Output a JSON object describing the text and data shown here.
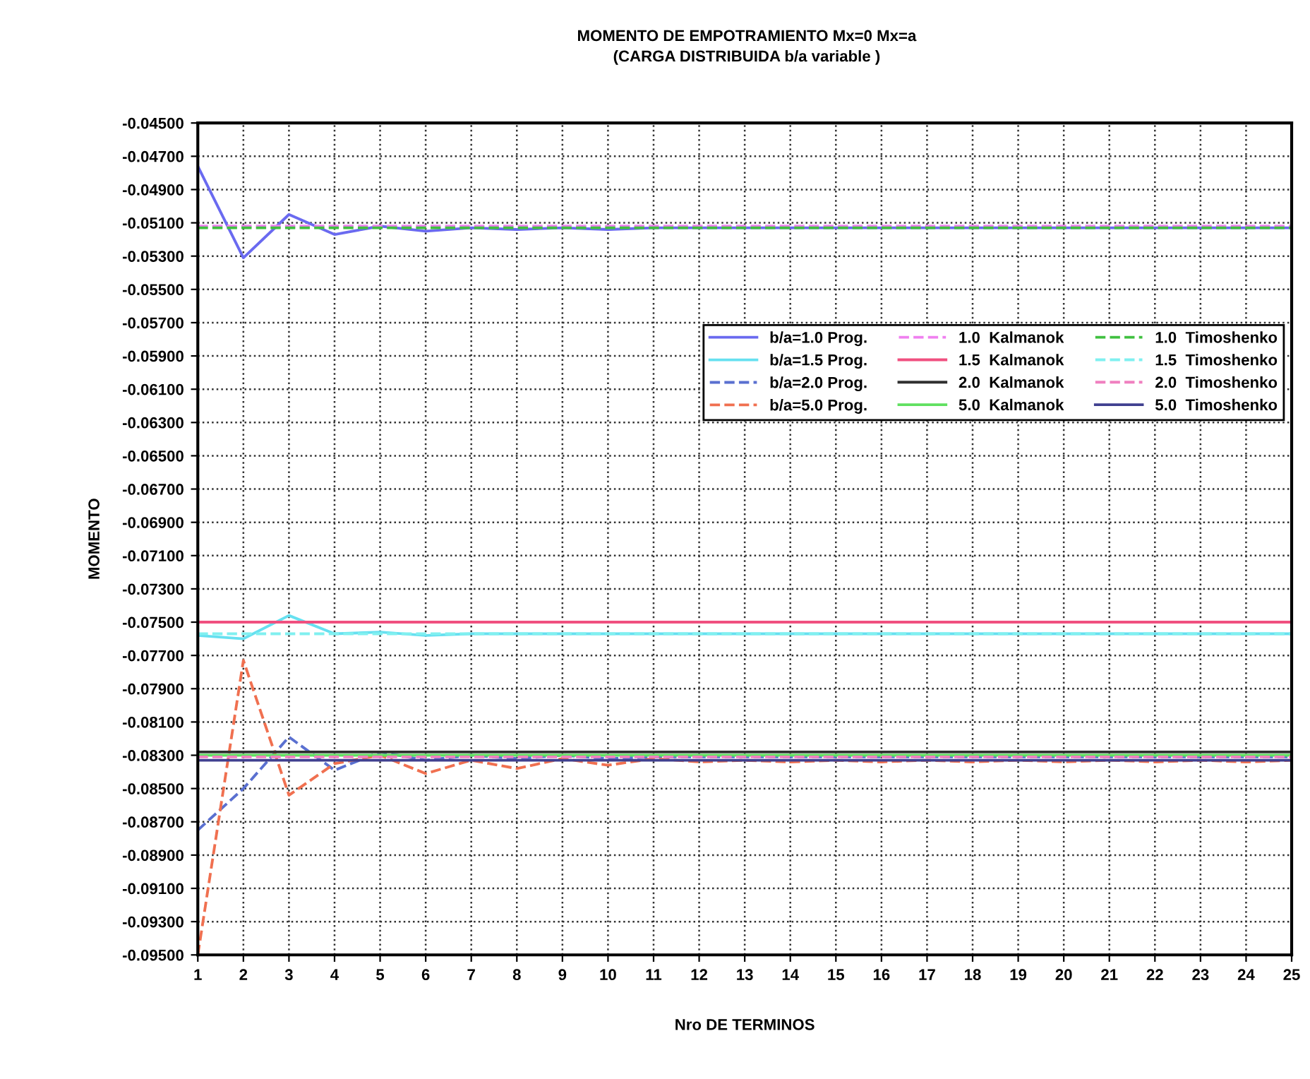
{
  "chart_data": {
    "type": "line",
    "title": "MOMENTO DE EMPOTRAMIENTO Mx=0 Mx=a",
    "subtitle": "(CARGA DISTRIBUIDA b/a variable )",
    "xlabel": "Nro DE TERMINOS",
    "ylabel": "MOMENTO",
    "x": [
      1,
      2,
      3,
      4,
      5,
      6,
      7,
      8,
      9,
      10,
      11,
      12,
      13,
      14,
      15,
      16,
      17,
      18,
      19,
      20,
      21,
      22,
      23,
      24,
      25
    ],
    "xlim": [
      1,
      25
    ],
    "xticks": [
      1,
      2,
      3,
      4,
      5,
      6,
      7,
      8,
      9,
      10,
      11,
      12,
      13,
      14,
      15,
      16,
      17,
      18,
      19,
      20,
      21,
      22,
      23,
      24,
      25
    ],
    "ylim": [
      -0.095,
      -0.045
    ],
    "yticks": [
      {
        "value": -0.045,
        "label": "-0.04500"
      },
      {
        "value": -0.047,
        "label": "-0.04700"
      },
      {
        "value": -0.049,
        "label": "-0.04900"
      },
      {
        "value": -0.051,
        "label": "-0.05100"
      },
      {
        "value": -0.053,
        "label": "-0.05300"
      },
      {
        "value": -0.055,
        "label": "-0.05500"
      },
      {
        "value": -0.057,
        "label": "-0.05700"
      },
      {
        "value": -0.059,
        "label": "-0.05900"
      },
      {
        "value": -0.061,
        "label": "-0.06100"
      },
      {
        "value": -0.063,
        "label": "-0.06300"
      },
      {
        "value": -0.065,
        "label": "-0.06500"
      },
      {
        "value": -0.067,
        "label": "-0.06700"
      },
      {
        "value": -0.069,
        "label": "-0.06900"
      },
      {
        "value": -0.071,
        "label": "-0.07100"
      },
      {
        "value": -0.073,
        "label": "-0.07300"
      },
      {
        "value": -0.075,
        "label": "-0.07500"
      },
      {
        "value": -0.077,
        "label": "-0.07700"
      },
      {
        "value": -0.079,
        "label": "-0.07900"
      },
      {
        "value": -0.081,
        "label": "-0.08100"
      },
      {
        "value": -0.083,
        "label": "-0.08300"
      },
      {
        "value": -0.085,
        "label": "-0.08500"
      },
      {
        "value": -0.087,
        "label": "-0.08700"
      },
      {
        "value": -0.089,
        "label": "-0.08900"
      },
      {
        "value": -0.091,
        "label": "-0.09100"
      },
      {
        "value": -0.093,
        "label": "-0.09300"
      },
      {
        "value": -0.095,
        "label": "-0.09500"
      }
    ],
    "grid": true,
    "legend": "right",
    "series": [
      {
        "name": "b/a=1.0 Prog.",
        "color": "#6a6af0",
        "line_style": "solid",
        "values": [
          -0.0476,
          -0.0531,
          -0.0505,
          -0.0517,
          -0.0512,
          -0.0515,
          -0.0513,
          -0.0514,
          -0.0513,
          -0.0514,
          -0.0513,
          -0.0513,
          -0.0513,
          -0.0513,
          -0.0513,
          -0.0513,
          -0.0513,
          -0.0513,
          -0.0513,
          -0.0513,
          -0.0513,
          -0.0513,
          -0.0513,
          -0.0513,
          -0.0513
        ]
      },
      {
        "name": "b/a=1.5 Prog.",
        "color": "#66e0f0",
        "line_style": "solid",
        "values": [
          -0.0758,
          -0.076,
          -0.0746,
          -0.0757,
          -0.0756,
          -0.0758,
          -0.0757,
          -0.0757,
          -0.0757,
          -0.0757,
          -0.0757,
          -0.0757,
          -0.0757,
          -0.0757,
          -0.0757,
          -0.0757,
          -0.0757,
          -0.0757,
          -0.0757,
          -0.0757,
          -0.0757,
          -0.0757,
          -0.0757,
          -0.0757,
          -0.0757
        ]
      },
      {
        "name": "b/a=2.0 Prog.",
        "color": "#5a70d0",
        "line_style": "dashed",
        "values": [
          -0.0875,
          -0.085,
          -0.0819,
          -0.0839,
          -0.0828,
          -0.0833,
          -0.083,
          -0.0832,
          -0.083,
          -0.0832,
          -0.0831,
          -0.0831,
          -0.0831,
          -0.0831,
          -0.0831,
          -0.0831,
          -0.0831,
          -0.0831,
          -0.0831,
          -0.0831,
          -0.0831,
          -0.0831,
          -0.0831,
          -0.0831,
          -0.0831
        ]
      },
      {
        "name": "b/a=5.0 Prog.",
        "color": "#f07050",
        "line_style": "dashed",
        "values": [
          -0.095,
          -0.0773,
          -0.0854,
          -0.0835,
          -0.083,
          -0.0841,
          -0.0833,
          -0.0838,
          -0.0832,
          -0.0836,
          -0.0832,
          -0.0834,
          -0.0833,
          -0.0834,
          -0.0833,
          -0.0834,
          -0.0833,
          -0.0834,
          -0.0833,
          -0.0834,
          -0.0833,
          -0.0834,
          -0.0833,
          -0.0834,
          -0.0833
        ]
      },
      {
        "name": "1.0  Kalmanok",
        "color": "#f080f0",
        "line_style": "dashed",
        "values": [
          -0.0512,
          -0.0512,
          -0.0512,
          -0.0512,
          -0.0512,
          -0.0512,
          -0.0512,
          -0.0512,
          -0.0512,
          -0.0512,
          -0.0512,
          -0.0512,
          -0.0512,
          -0.0512,
          -0.0512,
          -0.0512,
          -0.0512,
          -0.0512,
          -0.0512,
          -0.0512,
          -0.0512,
          -0.0512,
          -0.0512,
          -0.0512,
          -0.0512
        ]
      },
      {
        "name": "1.5  Kalmanok",
        "color": "#f05080",
        "line_style": "solid",
        "values": [
          -0.075,
          -0.075,
          -0.075,
          -0.075,
          -0.075,
          -0.075,
          -0.075,
          -0.075,
          -0.075,
          -0.075,
          -0.075,
          -0.075,
          -0.075,
          -0.075,
          -0.075,
          -0.075,
          -0.075,
          -0.075,
          -0.075,
          -0.075,
          -0.075,
          -0.075,
          -0.075,
          -0.075,
          -0.075
        ]
      },
      {
        "name": "2.0  Kalmanok",
        "color": "#303030",
        "line_style": "solid",
        "values": [
          -0.0828,
          -0.0828,
          -0.0828,
          -0.0828,
          -0.0828,
          -0.0828,
          -0.0828,
          -0.0828,
          -0.0828,
          -0.0828,
          -0.0828,
          -0.0828,
          -0.0828,
          -0.0828,
          -0.0828,
          -0.0828,
          -0.0828,
          -0.0828,
          -0.0828,
          -0.0828,
          -0.0828,
          -0.0828,
          -0.0828,
          -0.0828,
          -0.0828
        ]
      },
      {
        "name": "5.0  Kalmanok",
        "color": "#60e060",
        "line_style": "solid",
        "values": [
          -0.083,
          -0.083,
          -0.083,
          -0.083,
          -0.083,
          -0.083,
          -0.083,
          -0.083,
          -0.083,
          -0.083,
          -0.083,
          -0.083,
          -0.083,
          -0.083,
          -0.083,
          -0.083,
          -0.083,
          -0.083,
          -0.083,
          -0.083,
          -0.083,
          -0.083,
          -0.083,
          -0.083,
          -0.083
        ]
      },
      {
        "name": "1.0  Timoshenko",
        "color": "#40c040",
        "line_style": "dashed",
        "values": [
          -0.0513,
          -0.0513,
          -0.0513,
          -0.0513,
          -0.0513,
          -0.0513,
          -0.0513,
          -0.0513,
          -0.0513,
          -0.0513,
          -0.0513,
          -0.0513,
          -0.0513,
          -0.0513,
          -0.0513,
          -0.0513,
          -0.0513,
          -0.0513,
          -0.0513,
          -0.0513,
          -0.0513,
          -0.0513,
          -0.0513,
          -0.0513,
          -0.0513
        ]
      },
      {
        "name": "1.5  Timoshenko",
        "color": "#80f0f0",
        "line_style": "dashed",
        "values": [
          -0.0757,
          -0.0757,
          -0.0757,
          -0.0757,
          -0.0757,
          -0.0757,
          -0.0757,
          -0.0757,
          -0.0757,
          -0.0757,
          -0.0757,
          -0.0757,
          -0.0757,
          -0.0757,
          -0.0757,
          -0.0757,
          -0.0757,
          -0.0757,
          -0.0757,
          -0.0757,
          -0.0757,
          -0.0757,
          -0.0757,
          -0.0757,
          -0.0757
        ]
      },
      {
        "name": "2.0  Timoshenko",
        "color": "#f080c0",
        "line_style": "dashed",
        "values": [
          -0.0831,
          -0.0831,
          -0.0831,
          -0.0831,
          -0.0831,
          -0.0831,
          -0.0831,
          -0.0831,
          -0.0831,
          -0.0831,
          -0.0831,
          -0.0831,
          -0.0831,
          -0.0831,
          -0.0831,
          -0.0831,
          -0.0831,
          -0.0831,
          -0.0831,
          -0.0831,
          -0.0831,
          -0.0831,
          -0.0831,
          -0.0831,
          -0.0831
        ]
      },
      {
        "name": "5.0  Timoshenko",
        "color": "#404090",
        "line_style": "solid",
        "values": [
          -0.0833,
          -0.0833,
          -0.0833,
          -0.0833,
          -0.0833,
          -0.0833,
          -0.0833,
          -0.0833,
          -0.0833,
          -0.0833,
          -0.0833,
          -0.0833,
          -0.0833,
          -0.0833,
          -0.0833,
          -0.0833,
          -0.0833,
          -0.0833,
          -0.0833,
          -0.0833,
          -0.0833,
          -0.0833,
          -0.0833,
          -0.0833,
          -0.0833
        ]
      }
    ]
  }
}
